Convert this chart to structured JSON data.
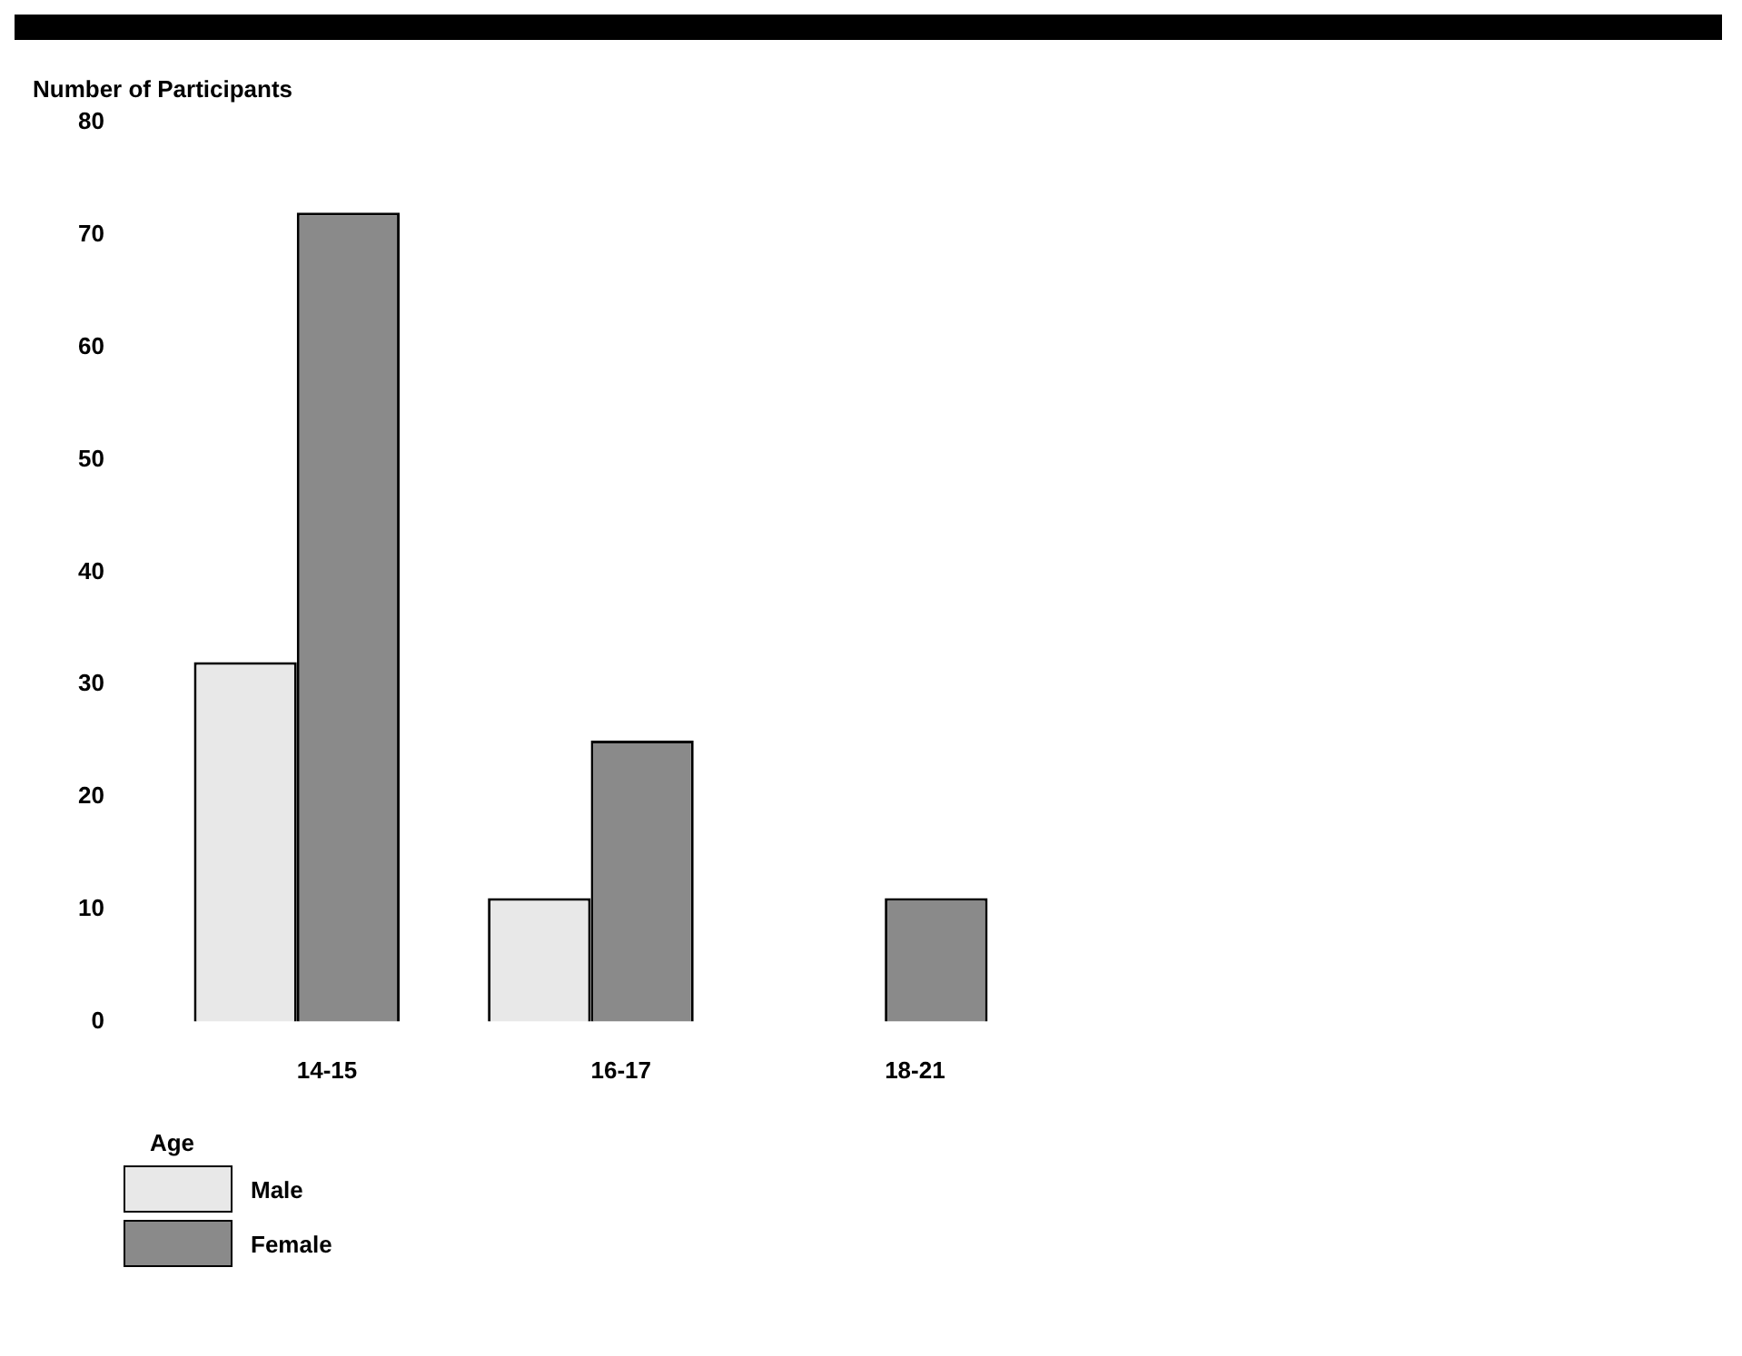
{
  "chart_data": {
    "type": "bar",
    "ylabel": "Number of Participants",
    "xlabel": "Age",
    "categories": [
      "14-15",
      "16-17",
      "18-21"
    ],
    "series": [
      {
        "name": "Male",
        "color": "#e8e8e8",
        "values": [
          32,
          11,
          0
        ]
      },
      {
        "name": "Female",
        "color": "#8a8a8a",
        "values": [
          72,
          25,
          11
        ]
      }
    ],
    "ylim": [
      0,
      80
    ],
    "yticks": [
      0,
      10,
      20,
      30,
      40,
      50,
      60,
      70,
      80
    ],
    "grid": false,
    "legend": "bottom left"
  }
}
